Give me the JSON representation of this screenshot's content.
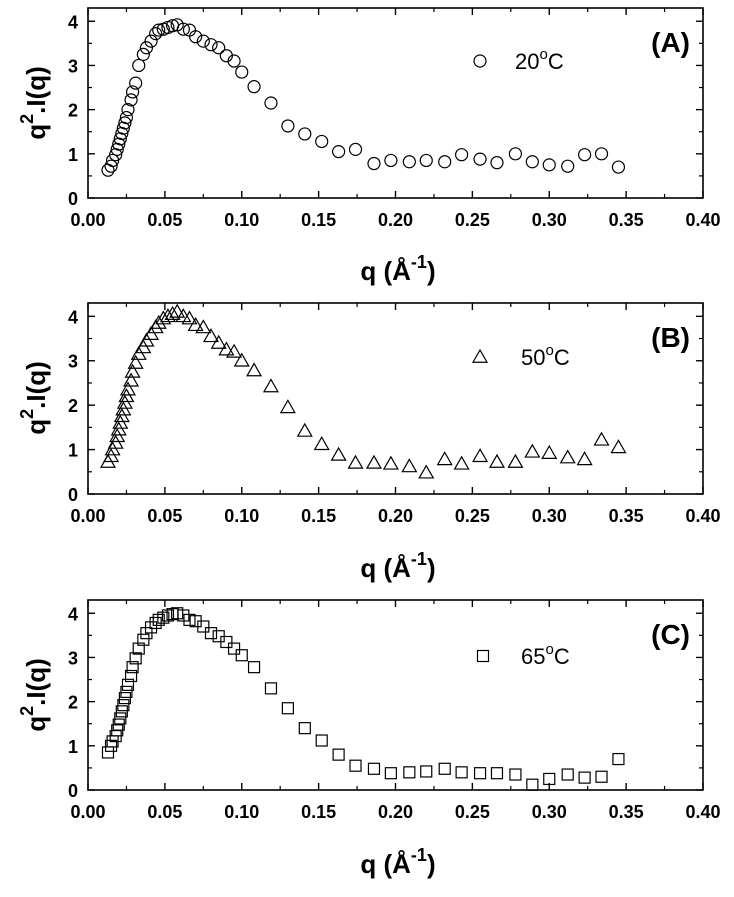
{
  "chart_data": [
    {
      "type": "scatter",
      "panel_label": "(A)",
      "legend": {
        "label_number": "20",
        "label_degree": "o",
        "label_unit": "C",
        "marker": "circle"
      },
      "xlabel_main": "q (",
      "xlabel_unit": "Å",
      "xlabel_exp": "-1",
      "xlabel_end": ")",
      "ylabel_base": "q",
      "ylabel_exp": "2",
      "ylabel_rest": ".I(q)",
      "xlim": [
        0,
        0.4
      ],
      "ylim": [
        0,
        4.3
      ],
      "xticks": [
        "0.00",
        "0.05",
        "0.10",
        "0.15",
        "0.20",
        "0.25",
        "0.30",
        "0.35",
        "0.40"
      ],
      "yticks": [
        "0",
        "1",
        "2",
        "3",
        "4"
      ],
      "series": [
        {
          "name": "20°C",
          "x": [
            0.013,
            0.015,
            0.016,
            0.018,
            0.019,
            0.02,
            0.021,
            0.022,
            0.023,
            0.024,
            0.025,
            0.026,
            0.028,
            0.029,
            0.031,
            0.033,
            0.036,
            0.038,
            0.041,
            0.044,
            0.046,
            0.049,
            0.052,
            0.055,
            0.058,
            0.062,
            0.066,
            0.07,
            0.075,
            0.08,
            0.085,
            0.09,
            0.095,
            0.1,
            0.108,
            0.119,
            0.13,
            0.141,
            0.152,
            0.163,
            0.174,
            0.186,
            0.197,
            0.209,
            0.22,
            0.232,
            0.243,
            0.255,
            0.266,
            0.278,
            0.289,
            0.3,
            0.312,
            0.323,
            0.334,
            0.345
          ],
          "y": [
            0.63,
            0.72,
            0.85,
            0.98,
            1.1,
            1.22,
            1.34,
            1.46,
            1.58,
            1.7,
            1.82,
            2.0,
            2.22,
            2.4,
            2.6,
            3.0,
            3.25,
            3.4,
            3.55,
            3.72,
            3.8,
            3.82,
            3.86,
            3.9,
            3.92,
            3.82,
            3.8,
            3.65,
            3.55,
            3.47,
            3.4,
            3.22,
            3.1,
            2.85,
            2.52,
            2.15,
            1.63,
            1.45,
            1.28,
            1.05,
            1.1,
            0.78,
            0.85,
            0.82,
            0.85,
            0.82,
            0.98,
            0.88,
            0.8,
            1.0,
            0.82,
            0.75,
            0.72,
            0.98,
            1.0,
            0.7
          ]
        }
      ]
    },
    {
      "type": "scatter",
      "panel_label": "(B)",
      "legend": {
        "label_number": "50",
        "label_degree": "o",
        "label_unit": "C",
        "marker": "triangle"
      },
      "xlabel_main": "q (",
      "xlabel_unit": "Å",
      "xlabel_exp": "-1",
      "xlabel_end": ")",
      "ylabel_base": "q",
      "ylabel_exp": "2",
      "ylabel_rest": ".I(q)",
      "xlim": [
        0,
        0.4
      ],
      "ylim": [
        0,
        4.3
      ],
      "xticks": [
        "0.00",
        "0.05",
        "0.10",
        "0.15",
        "0.20",
        "0.25",
        "0.30",
        "0.35",
        "0.40"
      ],
      "yticks": [
        "0",
        "1",
        "2",
        "3",
        "4"
      ],
      "series": [
        {
          "name": "50°C",
          "x": [
            0.013,
            0.015,
            0.016,
            0.018,
            0.019,
            0.02,
            0.021,
            0.022,
            0.023,
            0.024,
            0.025,
            0.026,
            0.028,
            0.029,
            0.031,
            0.033,
            0.036,
            0.038,
            0.041,
            0.044,
            0.046,
            0.049,
            0.052,
            0.055,
            0.058,
            0.062,
            0.066,
            0.07,
            0.075,
            0.08,
            0.085,
            0.09,
            0.095,
            0.1,
            0.108,
            0.119,
            0.13,
            0.141,
            0.152,
            0.163,
            0.174,
            0.186,
            0.197,
            0.209,
            0.22,
            0.232,
            0.243,
            0.255,
            0.266,
            0.278,
            0.289,
            0.3,
            0.312,
            0.323,
            0.334,
            0.345
          ],
          "y": [
            0.72,
            0.85,
            1.0,
            1.15,
            1.3,
            1.45,
            1.6,
            1.75,
            1.9,
            2.05,
            2.2,
            2.35,
            2.55,
            2.75,
            2.95,
            3.15,
            3.3,
            3.45,
            3.6,
            3.75,
            3.85,
            3.95,
            4.0,
            4.05,
            4.1,
            4.0,
            3.95,
            3.8,
            3.75,
            3.55,
            3.4,
            3.25,
            3.2,
            3.0,
            2.78,
            2.42,
            1.95,
            1.42,
            1.12,
            0.88,
            0.7,
            0.7,
            0.68,
            0.62,
            0.48,
            0.78,
            0.68,
            0.85,
            0.72,
            0.72,
            0.95,
            0.92,
            0.82,
            0.78,
            1.22,
            1.05
          ]
        }
      ]
    },
    {
      "type": "scatter",
      "panel_label": "(C)",
      "legend": {
        "label_number": "65",
        "label_degree": "o",
        "label_unit": "C",
        "marker": "square"
      },
      "xlabel_main": "q (",
      "xlabel_unit": "Å",
      "xlabel_exp": "-1",
      "xlabel_end": ")",
      "ylabel_base": "q",
      "ylabel_exp": "2",
      "ylabel_rest": ".I(q)",
      "xlim": [
        0,
        0.4
      ],
      "ylim": [
        0,
        4.3
      ],
      "xticks": [
        "0.00",
        "0.05",
        "0.10",
        "0.15",
        "0.20",
        "0.25",
        "0.30",
        "0.35",
        "0.40"
      ],
      "yticks": [
        "0",
        "1",
        "2",
        "3",
        "4"
      ],
      "series": [
        {
          "name": "65°C",
          "x": [
            0.013,
            0.015,
            0.016,
            0.018,
            0.019,
            0.02,
            0.021,
            0.022,
            0.023,
            0.024,
            0.025,
            0.026,
            0.028,
            0.029,
            0.031,
            0.033,
            0.036,
            0.038,
            0.041,
            0.044,
            0.046,
            0.049,
            0.052,
            0.055,
            0.058,
            0.062,
            0.066,
            0.07,
            0.075,
            0.08,
            0.085,
            0.09,
            0.095,
            0.1,
            0.108,
            0.119,
            0.13,
            0.141,
            0.152,
            0.163,
            0.174,
            0.186,
            0.197,
            0.209,
            0.22,
            0.232,
            0.243,
            0.255,
            0.266,
            0.278,
            0.289,
            0.3,
            0.312,
            0.323,
            0.334,
            0.345
          ],
          "y": [
            0.85,
            1.0,
            1.1,
            1.22,
            1.35,
            1.48,
            1.62,
            1.78,
            1.92,
            2.08,
            2.22,
            2.38,
            2.58,
            2.78,
            2.98,
            3.2,
            3.4,
            3.55,
            3.68,
            3.78,
            3.85,
            3.9,
            3.95,
            3.98,
            4.0,
            3.95,
            3.85,
            3.82,
            3.7,
            3.55,
            3.48,
            3.35,
            3.2,
            3.05,
            2.78,
            2.3,
            1.85,
            1.4,
            1.12,
            0.8,
            0.55,
            0.48,
            0.38,
            0.4,
            0.42,
            0.48,
            0.4,
            0.38,
            0.38,
            0.35,
            0.12,
            0.25,
            0.35,
            0.28,
            0.3,
            0.7
          ]
        }
      ]
    }
  ]
}
